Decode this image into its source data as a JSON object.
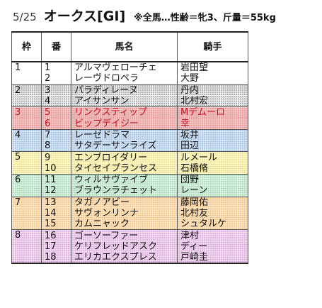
{
  "header": {
    "date": "5/25",
    "race": "オークス[GI]",
    "conditions": "※全馬…性齢＝牝3、斤量＝55kg"
  },
  "columns": {
    "waku": "枠",
    "umaban": "番",
    "horse": "馬名",
    "jockey": "騎手"
  },
  "rows": [
    {
      "waku": "1",
      "umaban": "1",
      "horse": "アルマヴェローチェ",
      "jockey": "岩田望"
    },
    {
      "waku": "",
      "umaban": "2",
      "horse": "レーヴドロペラ",
      "jockey": "大野"
    },
    {
      "waku": "2",
      "umaban": "3",
      "horse": "パラディレーヌ",
      "jockey": "丹内"
    },
    {
      "waku": "",
      "umaban": "4",
      "horse": "アイサンサン",
      "jockey": "北村宏"
    },
    {
      "waku": "3",
      "umaban": "5",
      "horse": "リンクスティップ",
      "jockey": "Mデムーロ"
    },
    {
      "waku": "",
      "umaban": "6",
      "horse": "ビップデイジー",
      "jockey": "幸"
    },
    {
      "waku": "4",
      "umaban": "7",
      "horse": "レーゼドラマ",
      "jockey": "坂井"
    },
    {
      "waku": "",
      "umaban": "8",
      "horse": "サタデーサンライズ",
      "jockey": "田辺"
    },
    {
      "waku": "5",
      "umaban": "9",
      "horse": "エンブロイダリー",
      "jockey": "ルメール"
    },
    {
      "waku": "",
      "umaban": "10",
      "horse": "タイセイプランセス",
      "jockey": "石橋脩"
    },
    {
      "waku": "6",
      "umaban": "11",
      "horse": "ウィルサヴァイブ",
      "jockey": "団野"
    },
    {
      "waku": "",
      "umaban": "12",
      "horse": "ブラウンラチェット",
      "jockey": "レーン"
    },
    {
      "waku": "7",
      "umaban": "13",
      "horse": "タガノアビー",
      "jockey": "藤岡佑"
    },
    {
      "waku": "",
      "umaban": "14",
      "horse": "サヴォンリンナ",
      "jockey": "北村友"
    },
    {
      "waku": "",
      "umaban": "15",
      "horse": "カムニャック",
      "jockey": "シュタルケ"
    },
    {
      "waku": "8",
      "umaban": "16",
      "horse": "ゴーソーファー",
      "jockey": "津村"
    },
    {
      "waku": "",
      "umaban": "17",
      "horse": "ケリフレッドアスク",
      "jockey": "ディー"
    },
    {
      "waku": "",
      "umaban": "18",
      "horse": "エリカエクスプレス",
      "jockey": "戸崎圭"
    }
  ],
  "waku_colors": {
    "1": "#ffffff",
    "2": "#e6e6e6",
    "3": "#f6c8c8",
    "4": "#d6e6f7",
    "5": "#fff8c8",
    "6": "#d9f1e0",
    "7": "#fde6c8",
    "8": "#f3dcf3"
  }
}
